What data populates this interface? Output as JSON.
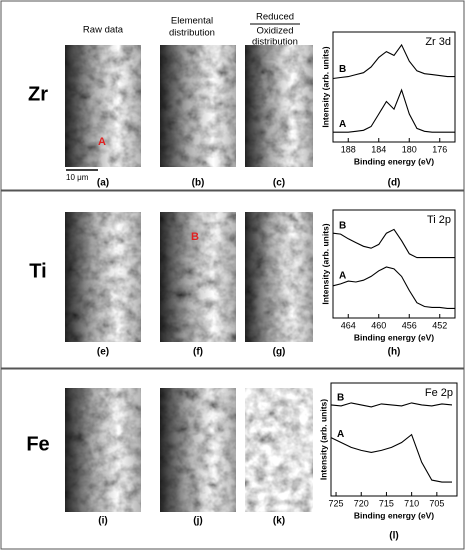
{
  "header": {
    "raw_data": "Raw data",
    "elemental": [
      "Elemental",
      "distribution"
    ],
    "reduced": "Reduced",
    "oxidized": [
      "Oxidized",
      "distribution"
    ]
  },
  "scale_bar": "10 μm",
  "rows": [
    {
      "element": "Zr",
      "marker": "A",
      "panel_labels": [
        "(a)",
        "(b)",
        "(c)",
        "(d)"
      ],
      "spectrum": {
        "title": "Zr 3d",
        "x_label": "Binding energy (eV)",
        "y_label": "Intensity (arb. units)",
        "xlim": [
          190,
          174
        ],
        "xticks": [
          188,
          184,
          180,
          176
        ],
        "ylim": [
          0,
          1
        ],
        "x": [
          190,
          189,
          188,
          187,
          186,
          185,
          184,
          183,
          182,
          181,
          180,
          179,
          178,
          177,
          176,
          175,
          174
        ],
        "series": [
          {
            "name": "B",
            "values": [
              0.62,
              0.63,
              0.64,
              0.66,
              0.68,
              0.74,
              0.84,
              0.9,
              0.86,
              0.97,
              0.8,
              0.7,
              0.67,
              0.66,
              0.65,
              0.64,
              0.64
            ]
          },
          {
            "name": "A",
            "values": [
              0.06,
              0.06,
              0.06,
              0.07,
              0.08,
              0.12,
              0.25,
              0.38,
              0.3,
              0.5,
              0.25,
              0.1,
              0.07,
              0.06,
              0.06,
              0.06,
              0.06
            ]
          }
        ]
      }
    },
    {
      "element": "Ti",
      "marker": "B",
      "panel_labels": [
        "(e)",
        "(f)",
        "(g)",
        "(h)"
      ],
      "spectrum": {
        "title": "Ti 2p",
        "x_label": "Binding energy (eV)",
        "y_label": "Intensity (arb. units)",
        "xlim": [
          466,
          450
        ],
        "xticks": [
          464,
          460,
          456,
          452
        ],
        "ylim": [
          0,
          1
        ],
        "x": [
          466,
          465,
          464,
          463,
          462,
          461,
          460,
          459,
          458,
          457,
          456,
          455,
          454,
          453,
          452,
          451,
          450
        ],
        "series": [
          {
            "name": "B",
            "values": [
              0.86,
              0.85,
              0.8,
              0.76,
              0.72,
              0.7,
              0.74,
              0.86,
              0.9,
              0.78,
              0.64,
              0.6,
              0.6,
              0.6,
              0.6,
              0.6,
              0.6
            ]
          },
          {
            "name": "A",
            "values": [
              0.3,
              0.32,
              0.35,
              0.34,
              0.36,
              0.4,
              0.46,
              0.5,
              0.48,
              0.4,
              0.25,
              0.12,
              0.08,
              0.07,
              0.07,
              0.06,
              0.06
            ]
          }
        ]
      }
    },
    {
      "element": "Fe",
      "panel_labels": [
        "(i)",
        "(j)",
        "(k)",
        "(l)"
      ],
      "spectrum": {
        "title": "Fe 2p",
        "x_label": "Binding energy (eV)",
        "y_label": "Intensity (arb. units)",
        "xlim": [
          726,
          701
        ],
        "xticks": [
          725,
          720,
          715,
          710,
          705
        ],
        "ylim": [
          0,
          1
        ],
        "x": [
          726,
          724,
          722,
          720,
          718,
          716,
          714,
          712,
          710,
          708,
          706,
          704,
          702
        ],
        "series": [
          {
            "name": "B",
            "values": [
              0.88,
              0.87,
              0.9,
              0.88,
              0.86,
              0.89,
              0.88,
              0.87,
              0.9,
              0.88,
              0.87,
              0.89,
              0.88
            ]
          },
          {
            "name": "A",
            "values": [
              0.55,
              0.5,
              0.45,
              0.42,
              0.4,
              0.42,
              0.45,
              0.5,
              0.58,
              0.3,
              0.12,
              0.1,
              0.1
            ]
          }
        ]
      }
    }
  ]
}
